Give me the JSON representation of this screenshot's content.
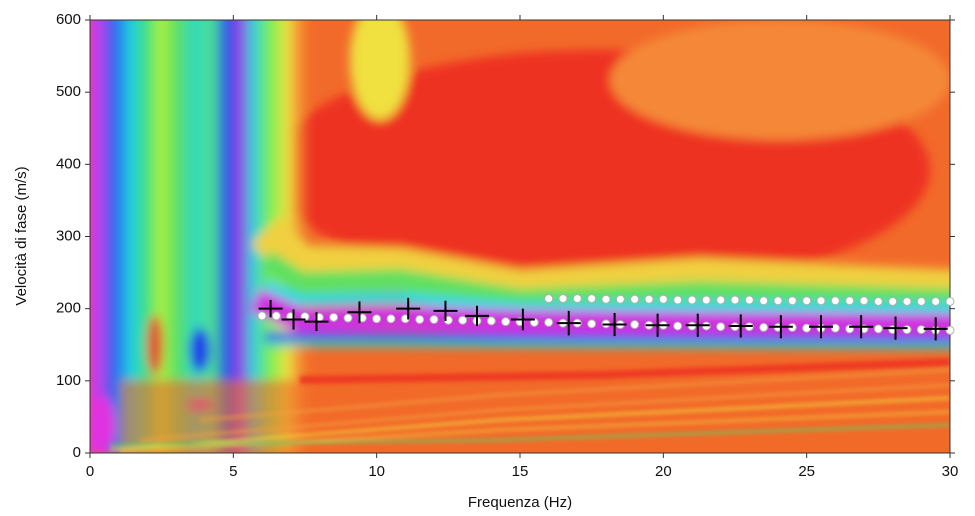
{
  "chart_data": {
    "type": "scatter",
    "x_label": "Frequenza (Hz)",
    "y_label": "Velocità di fase (m/s)",
    "xlim": [
      0,
      30
    ],
    "ylim": [
      0,
      600
    ],
    "xticks": [
      0,
      5,
      10,
      15,
      20,
      25,
      30
    ],
    "yticks": [
      0,
      100,
      200,
      300,
      400,
      500,
      600
    ],
    "series": [
      {
        "color": "#ffffff",
        "marker": "circle",
        "x": [
          6,
          6.5,
          7,
          7.5,
          8,
          8.5,
          9,
          9.5,
          10,
          10.5,
          11,
          11.5,
          12,
          12.5,
          13,
          13.5,
          14,
          14.5,
          15,
          15.5,
          16,
          16.5,
          17,
          17.5,
          18,
          18.5,
          19,
          19.5,
          20,
          20.5,
          21,
          21.5,
          22,
          22.5,
          23,
          23.5,
          24,
          24.5,
          25,
          25.5,
          26,
          26.5,
          27,
          27.5,
          28,
          28.5,
          29,
          29.5,
          30
        ],
        "y": [
          190,
          190,
          189,
          189,
          188,
          188,
          187,
          187,
          186,
          186,
          186,
          185,
          185,
          184,
          184,
          183,
          183,
          182,
          182,
          181,
          181,
          180,
          180,
          179,
          179,
          178,
          178,
          177,
          177,
          176,
          176,
          176,
          175,
          175,
          175,
          174,
          174,
          174,
          173,
          173,
          173,
          172,
          172,
          172,
          171,
          171,
          171,
          170,
          170
        ]
      },
      {
        "color": "#ffffff",
        "marker": "circle",
        "x": [
          16,
          16.5,
          17,
          17.5,
          18,
          18.5,
          19,
          19.5,
          20,
          20.5,
          21,
          21.5,
          22,
          22.5,
          23,
          23.5,
          24,
          24.5,
          25,
          25.5,
          26,
          26.5,
          27,
          27.5,
          28,
          28.5,
          29,
          29.5,
          30
        ],
        "y": [
          214,
          214,
          214,
          214,
          213,
          213,
          213,
          213,
          213,
          212,
          212,
          212,
          212,
          212,
          212,
          211,
          211,
          211,
          211,
          211,
          211,
          211,
          211,
          210,
          210,
          210,
          210,
          210,
          210
        ]
      },
      {
        "color": "#000000",
        "marker": "cross",
        "x": [
          6.3,
          7.1,
          7.9,
          9.4,
          11.1,
          12.4,
          13.5,
          15.1,
          16.7,
          18.3,
          19.8,
          21.2,
          22.7,
          24.1,
          25.5,
          26.9,
          28.1,
          29.5
        ],
        "y": [
          200,
          185,
          182,
          195,
          200,
          197,
          190,
          185,
          180,
          178,
          177,
          177,
          176,
          175,
          175,
          175,
          173,
          172
        ],
        "errors": [
          12,
          14,
          13,
          15,
          15,
          14,
          14,
          15,
          17,
          16,
          16,
          16,
          16,
          16,
          16,
          16,
          16,
          16
        ]
      }
    ]
  }
}
